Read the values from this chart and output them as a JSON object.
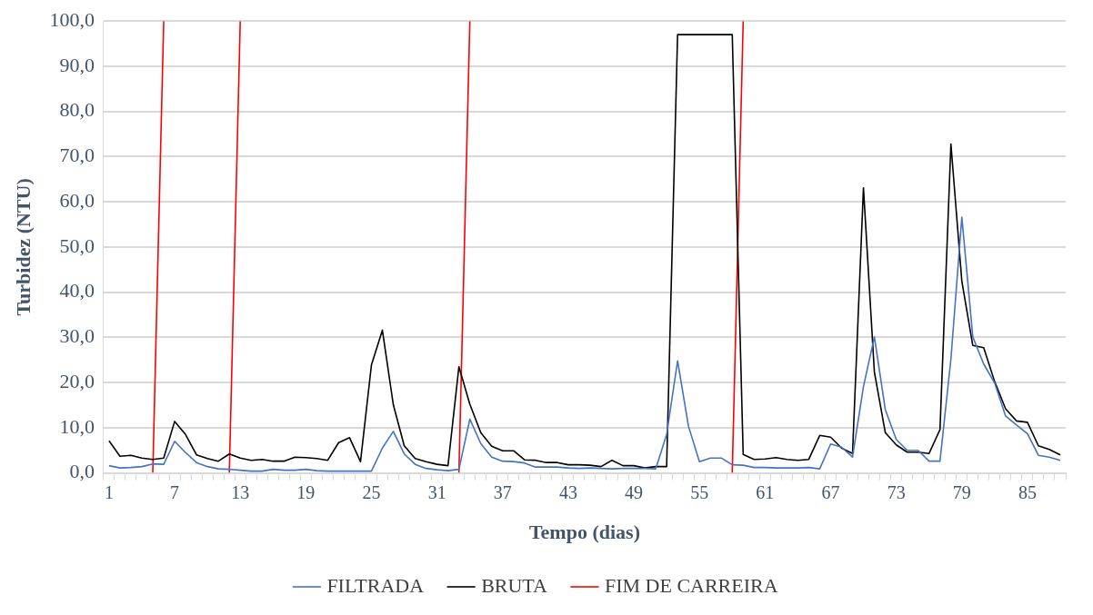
{
  "chart_data": {
    "type": "line",
    "xlabel": "Tempo (dias)",
    "ylabel": "Turbidez (NTU)",
    "categories": [
      "1",
      null,
      null,
      null,
      null,
      null,
      "7",
      null,
      null,
      null,
      null,
      null,
      "13",
      null,
      null,
      null,
      null,
      null,
      "19",
      null,
      null,
      null,
      null,
      null,
      "25",
      null,
      null,
      null,
      null,
      null,
      "31",
      null,
      null,
      null,
      null,
      null,
      "37",
      null,
      null,
      null,
      null,
      null,
      "43",
      null,
      null,
      null,
      null,
      null,
      "49",
      null,
      null,
      null,
      null,
      null,
      "55",
      null,
      null,
      null,
      null,
      null,
      "61",
      null,
      null,
      null,
      null,
      null,
      "67",
      null,
      null,
      null,
      null,
      null,
      "73",
      null,
      null,
      null,
      null,
      null,
      "79",
      null,
      null,
      null,
      null,
      null,
      "85",
      null,
      null,
      null
    ],
    "series": [
      {
        "name": "FILTRADA",
        "color": "#4472c4",
        "values": [
          1.6,
          1.1,
          1.2,
          1.4,
          2.0,
          1.9,
          7.0,
          4.5,
          2.3,
          1.4,
          0.9,
          0.8,
          0.6,
          0.4,
          0.4,
          0.8,
          0.6,
          0.6,
          0.8,
          0.5,
          0.4,
          0.4,
          0.4,
          0.4,
          0.4,
          5.5,
          9.2,
          4.2,
          1.9,
          1.0,
          0.7,
          0.5,
          0.8,
          11.9,
          6.5,
          3.5,
          2.6,
          2.5,
          2.2,
          1.3,
          1.3,
          1.3,
          1.1,
          1.0,
          1.1,
          1.0,
          0.9,
          1.0,
          1.0,
          1.0,
          0.9,
          8.5,
          24.8,
          10.3,
          2.5,
          3.3,
          3.3,
          1.8,
          1.7,
          1.2,
          1.2,
          1.1,
          1.1,
          1.1,
          1.2,
          0.9,
          6.4,
          5.7,
          3.5,
          19.1,
          30.1,
          14.0,
          7.4,
          5.0,
          5.0,
          2.6,
          2.6,
          25.2,
          56.6,
          30.1,
          24.1,
          19.9,
          12.6,
          10.6,
          8.7,
          3.9,
          3.5,
          2.8
        ]
      },
      {
        "name": "BRUTA",
        "color": "#000000",
        "values": [
          7.1,
          3.7,
          3.9,
          3.3,
          3.0,
          3.3,
          11.4,
          8.5,
          4.0,
          3.2,
          2.6,
          4.2,
          3.3,
          2.8,
          3.0,
          2.6,
          2.6,
          3.5,
          3.4,
          3.2,
          2.8,
          6.7,
          7.8,
          2.5,
          23.9,
          31.6,
          15.1,
          6.0,
          3.2,
          2.5,
          1.9,
          1.6,
          23.5,
          15.2,
          8.9,
          5.9,
          4.9,
          4.9,
          2.9,
          2.8,
          2.3,
          2.3,
          1.8,
          1.8,
          1.7,
          1.4,
          2.8,
          1.6,
          1.6,
          1.1,
          1.4,
          1.4,
          97.0,
          97.0,
          97.0,
          97.0,
          97.0,
          97.0,
          4.1,
          3.0,
          3.1,
          3.4,
          3.0,
          2.8,
          3.0,
          8.3,
          7.9,
          5.5,
          4.3,
          63.1,
          22.3,
          8.9,
          6.2,
          4.6,
          4.6,
          4.3,
          9.6,
          72.8,
          42.4,
          28.2,
          27.7,
          20.2,
          14.2,
          11.5,
          11.2,
          6.0,
          5.2,
          4.0
        ]
      },
      {
        "name": "FIM DE CARREIRA",
        "color": "#ff0000",
        "values": [
          null,
          null,
          null,
          null,
          0,
          100,
          null,
          null,
          null,
          null,
          null,
          0,
          100,
          null,
          null,
          null,
          null,
          null,
          null,
          null,
          null,
          null,
          null,
          null,
          null,
          null,
          null,
          null,
          null,
          null,
          null,
          null,
          0,
          100,
          null,
          null,
          null,
          null,
          null,
          null,
          null,
          null,
          null,
          null,
          null,
          null,
          null,
          null,
          null,
          null,
          null,
          null,
          null,
          null,
          null,
          null,
          null,
          0,
          100,
          null,
          null,
          null,
          null,
          null,
          null,
          null,
          null,
          null,
          null,
          null,
          null,
          null,
          null,
          null,
          null,
          null,
          null,
          null,
          null,
          null,
          null,
          null,
          null,
          null,
          null,
          null,
          null,
          null
        ]
      }
    ],
    "ylim": [
      0,
      100
    ],
    "yticks": [
      {
        "value": 0,
        "label": "0,0"
      },
      {
        "value": 10,
        "label": "10,0"
      },
      {
        "value": 20,
        "label": "20,0"
      },
      {
        "value": 30,
        "label": "30,0"
      },
      {
        "value": 40,
        "label": "40,0"
      },
      {
        "value": 50,
        "label": "50,0"
      },
      {
        "value": 60,
        "label": "60,0"
      },
      {
        "value": 70,
        "label": "70,0"
      },
      {
        "value": 80,
        "label": "80,0"
      },
      {
        "value": 90,
        "label": "90,0"
      },
      {
        "value": 100,
        "label": "100,0"
      }
    ],
    "grid": "y",
    "legend": "bottom",
    "marker": "none",
    "line_style": "solid"
  }
}
